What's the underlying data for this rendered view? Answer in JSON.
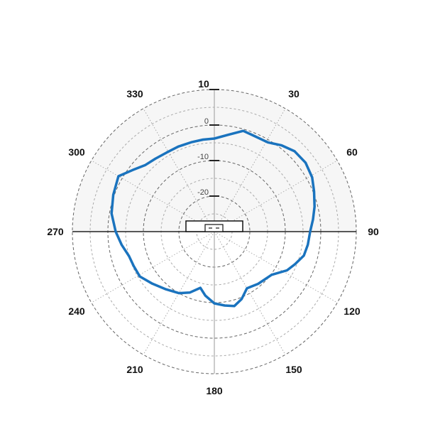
{
  "chart_data": {
    "type": "polar-line",
    "title": "",
    "angle_direction": "clockwise",
    "angle_zero": "top",
    "angle_ticks": [
      30,
      60,
      90,
      120,
      150,
      180,
      210,
      240,
      270,
      300,
      330
    ],
    "angle_tick_labels": [
      "30",
      "60",
      "90",
      "120",
      "150",
      "180",
      "210",
      "240",
      "270",
      "300",
      "330"
    ],
    "radial_range": [
      -30,
      10
    ],
    "radial_ticks": [
      10,
      0,
      -10,
      -20
    ],
    "radial_tick_labels": [
      "10",
      "0",
      "-10",
      "-20"
    ],
    "grid": true,
    "upper_half_shaded": true,
    "colors": {
      "series": "#1a73be",
      "shade": "#f6f6f6",
      "axis": "#222222",
      "grid": "#999999"
    },
    "series": [
      {
        "points": [
          [
            0,
            -3.8
          ],
          [
            8,
            -2.5
          ],
          [
            16,
            -0.5
          ],
          [
            22,
            -0.8
          ],
          [
            31,
            -0.7
          ],
          [
            38,
            0.8
          ],
          [
            45,
            2.0
          ],
          [
            53,
            2.2
          ],
          [
            61,
            1.5
          ],
          [
            68,
            0.3
          ],
          [
            76,
            -0.9
          ],
          [
            83,
            -2.0
          ],
          [
            90,
            -3.0
          ],
          [
            98,
            -3.4
          ],
          [
            105,
            -3.9
          ],
          [
            112,
            -5.5
          ],
          [
            118,
            -6.8
          ],
          [
            127,
            -9.8
          ],
          [
            140,
            -10.8
          ],
          [
            150,
            -11.6
          ],
          [
            158,
            -9.5
          ],
          [
            165,
            -8.3
          ],
          [
            172,
            -9.0
          ],
          [
            180,
            -9.8
          ],
          [
            188,
            -11.8
          ],
          [
            194,
            -13.7
          ],
          [
            202,
            -11.5
          ],
          [
            210,
            -10.0
          ],
          [
            220,
            -8.8
          ],
          [
            230,
            -7.2
          ],
          [
            239,
            -5.5
          ],
          [
            247,
            -5.3
          ],
          [
            254,
            -5.0
          ],
          [
            262,
            -3.6
          ],
          [
            270,
            -2.2
          ],
          [
            280,
            -0.6
          ],
          [
            290,
            0.3
          ],
          [
            300,
            1.2
          ],
          [
            307,
            -1.2
          ],
          [
            314,
            -3.0
          ],
          [
            321,
            -3.6
          ],
          [
            329,
            -4.0
          ],
          [
            337,
            -4.0
          ],
          [
            346,
            -4.0
          ],
          [
            353,
            -3.9
          ],
          [
            360,
            -3.8
          ]
        ]
      }
    ]
  }
}
